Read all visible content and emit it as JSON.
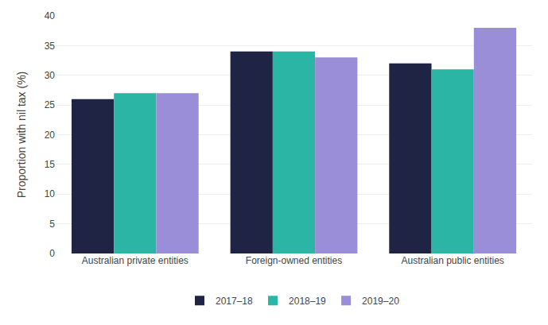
{
  "chart_data": {
    "type": "bar",
    "categories": [
      "Australian private entities",
      "Foreign-owned entities",
      "Australian public entities"
    ],
    "series": [
      {
        "name": "2017–18",
        "color": "#1f2444",
        "values": [
          26,
          34,
          32
        ]
      },
      {
        "name": "2018–19",
        "color": "#2ab5a5",
        "values": [
          27,
          34,
          31
        ]
      },
      {
        "name": "2019–20",
        "color": "#9b8ed9",
        "values": [
          27,
          33,
          38
        ]
      }
    ],
    "ylabel": "Proportion with nil tax (%)",
    "ylim": [
      0,
      40
    ],
    "yticks": [
      0,
      5,
      10,
      15,
      20,
      25,
      30,
      35,
      40
    ],
    "grid": true,
    "legend": "bottom"
  }
}
